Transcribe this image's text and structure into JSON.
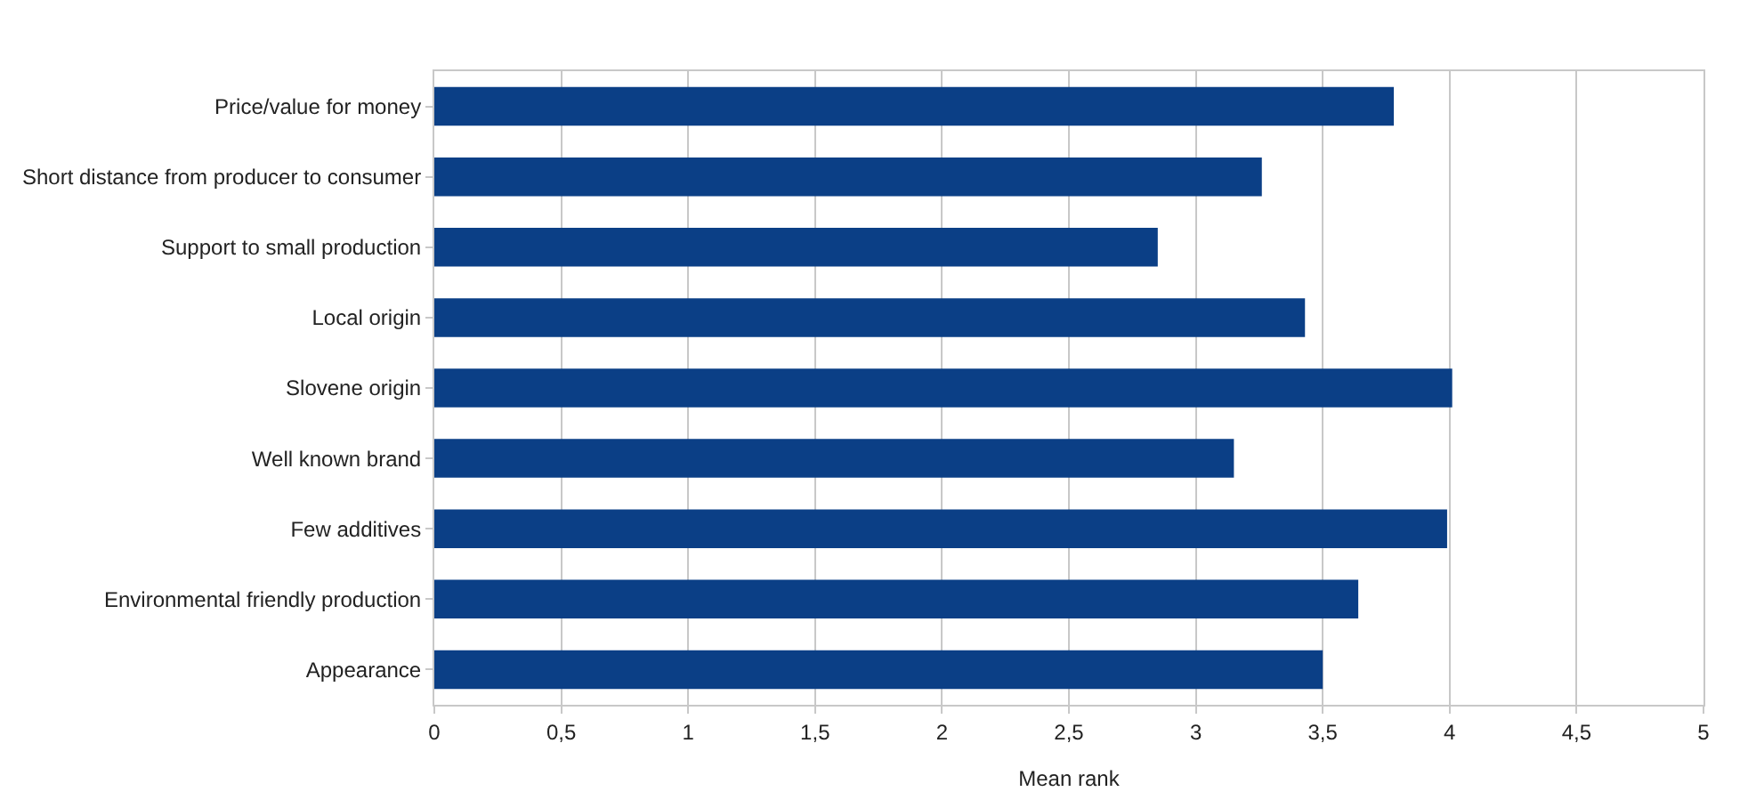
{
  "chart_data": {
    "type": "bar",
    "orientation": "horizontal",
    "xlabel": "Mean rank",
    "categories": [
      "Price/value for money",
      "Short distance from producer to consumer",
      "Support to small production",
      "Local origin",
      "Slovene origin",
      "Well known brand",
      "Few additives",
      "Environmental friendly production",
      "Appearance"
    ],
    "values": [
      3.78,
      3.26,
      2.85,
      3.43,
      4.01,
      3.15,
      3.99,
      3.64,
      3.5
    ],
    "color": "#0b3f86",
    "xlim": [
      0,
      5
    ],
    "xticks": [
      0,
      {
        "value": 0.5,
        "label": "0,5"
      },
      1,
      {
        "value": 1.5,
        "label": "1,5"
      },
      2,
      {
        "value": 2.5,
        "label": "2,5"
      },
      3,
      {
        "value": 3.5,
        "label": "3,5"
      },
      4,
      {
        "value": 4.5,
        "label": "4,5"
      },
      5
    ],
    "grid": "x",
    "legend": false
  }
}
